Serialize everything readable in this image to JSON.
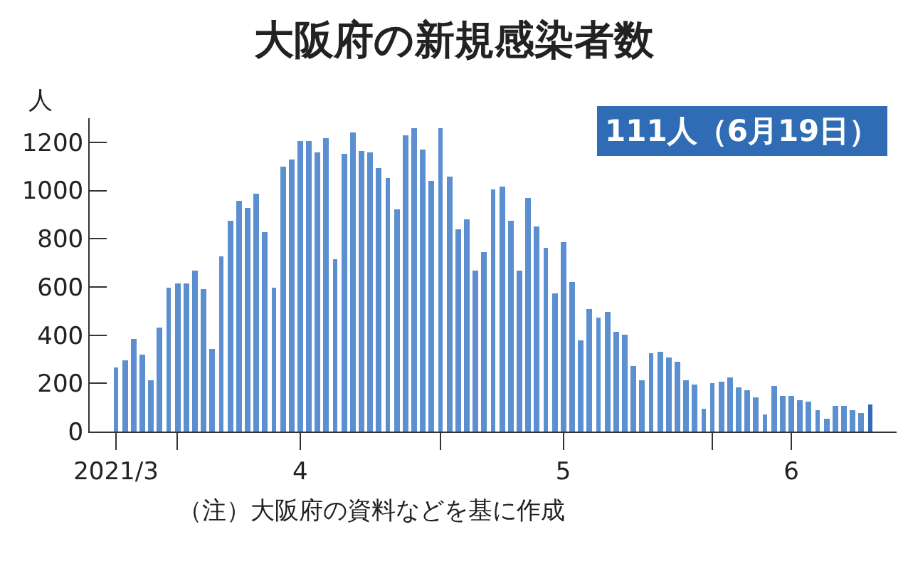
{
  "chart_data": {
    "type": "bar",
    "title": "大阪府の新規感染者数",
    "ylabel": "人",
    "annotations": [
      "111人（6月19日）",
      "（注）大阪府の資料などを基に作成"
    ],
    "x": [
      "2021-03-25",
      "2021-03-26",
      "2021-03-27",
      "2021-03-28",
      "2021-03-29",
      "2021-03-30",
      "2021-03-31",
      "2021-04-01",
      "2021-04-02",
      "2021-04-03",
      "2021-04-04",
      "2021-04-05",
      "2021-04-06",
      "2021-04-07",
      "2021-04-08",
      "2021-04-09",
      "2021-04-10",
      "2021-04-11",
      "2021-04-12",
      "2021-04-13",
      "2021-04-14",
      "2021-04-15",
      "2021-04-16",
      "2021-04-17",
      "2021-04-18",
      "2021-04-19",
      "2021-04-20",
      "2021-04-21",
      "2021-04-22",
      "2021-04-23",
      "2021-04-24",
      "2021-04-25",
      "2021-04-26",
      "2021-04-27",
      "2021-04-28",
      "2021-04-29",
      "2021-04-30",
      "2021-05-01",
      "2021-05-02",
      "2021-05-03",
      "2021-05-04",
      "2021-05-05",
      "2021-05-06",
      "2021-05-07",
      "2021-05-08",
      "2021-05-09",
      "2021-05-10",
      "2021-05-11",
      "2021-05-12",
      "2021-05-13",
      "2021-05-14",
      "2021-05-15",
      "2021-05-16",
      "2021-05-17",
      "2021-05-18",
      "2021-05-19",
      "2021-05-20",
      "2021-05-21",
      "2021-05-22",
      "2021-05-23",
      "2021-05-24",
      "2021-05-25",
      "2021-05-26",
      "2021-05-27",
      "2021-05-28",
      "2021-05-29",
      "2021-05-30",
      "2021-05-31",
      "2021-06-01",
      "2021-06-02",
      "2021-06-03",
      "2021-06-04",
      "2021-06-05",
      "2021-06-06",
      "2021-06-07",
      "2021-06-08",
      "2021-06-09",
      "2021-06-10",
      "2021-06-11",
      "2021-06-12",
      "2021-06-13",
      "2021-06-14",
      "2021-06-15",
      "2021-06-16",
      "2021-06-17",
      "2021-06-18",
      "2021-06-19"
    ],
    "values": [
      264,
      296,
      385,
      322,
      211,
      429,
      596,
      614,
      614,
      666,
      592,
      340,
      729,
      876,
      956,
      926,
      989,
      826,
      598,
      1097,
      1131,
      1206,
      1206,
      1160,
      1220,
      717,
      1150,
      1240,
      1164,
      1160,
      1095,
      1049,
      922,
      1228,
      1258,
      1170,
      1041,
      1258,
      1057,
      842,
      882,
      668,
      745,
      1005,
      1019,
      872,
      668,
      972,
      848,
      761,
      574,
      783,
      618,
      378,
      509,
      475,
      499,
      411,
      403,
      272,
      215,
      324,
      328,
      306,
      288,
      215,
      195,
      95,
      199,
      209,
      225,
      185,
      171,
      141,
      68,
      187,
      149,
      145,
      129,
      123,
      91,
      52,
      107,
      107,
      91,
      77,
      111
    ],
    "colors": [
      "#5b8fd0",
      "#5b8fd0",
      "#5b8fd0",
      "#5b8fd0",
      "#5b8fd0",
      "#5b8fd0",
      "#5b8fd0",
      "#5b8fd0",
      "#5b8fd0",
      "#5b8fd0",
      "#5b8fd0",
      "#5b8fd0",
      "#5b8fd0",
      "#5b8fd0",
      "#5b8fd0",
      "#5b8fd0",
      "#5b8fd0",
      "#5b8fd0",
      "#5b8fd0",
      "#5b8fd0",
      "#5b8fd0",
      "#5b8fd0",
      "#5b8fd0",
      "#5b8fd0",
      "#5b8fd0",
      "#5b8fd0",
      "#5b8fd0",
      "#5b8fd0",
      "#5b8fd0",
      "#5b8fd0",
      "#5b8fd0",
      "#5b8fd0",
      "#5b8fd0",
      "#5b8fd0",
      "#5b8fd0",
      "#5b8fd0",
      "#5b8fd0",
      "#5b8fd0",
      "#5b8fd0",
      "#5b8fd0",
      "#5b8fd0",
      "#5b8fd0",
      "#5b8fd0",
      "#5b8fd0",
      "#5b8fd0",
      "#5b8fd0",
      "#5b8fd0",
      "#5b8fd0",
      "#5b8fd0",
      "#5b8fd0",
      "#5b8fd0",
      "#5b8fd0",
      "#5b8fd0",
      "#5b8fd0",
      "#5b8fd0",
      "#5b8fd0",
      "#5b8fd0",
      "#5b8fd0",
      "#5b8fd0",
      "#5b8fd0",
      "#5b8fd0",
      "#5b8fd0",
      "#5b8fd0",
      "#5b8fd0",
      "#5b8fd0",
      "#5b8fd0",
      "#5b8fd0",
      "#5b8fd0",
      "#5b8fd0",
      "#5b8fd0",
      "#5b8fd0",
      "#5b8fd0",
      "#5b8fd0",
      "#5b8fd0",
      "#5b8fd0",
      "#5b8fd0",
      "#5b8fd0",
      "#5b8fd0",
      "#5b8fd0",
      "#5b8fd0",
      "#5b8fd0",
      "#5b8fd0",
      "#5b8fd0",
      "#5b8fd0",
      "#5b8fd0",
      "#5b8fd0",
      "#2f6cb5"
    ],
    "xlim": [
      "2021-03-22",
      "2021-06-22"
    ],
    "xticks": [
      {
        "value": "2021-03-25",
        "label": "2021/3"
      },
      {
        "value": "2021-04-01",
        "label": null
      },
      {
        "value": "2021-04-15",
        "label": "4"
      },
      {
        "value": "2021-05-01",
        "label": null
      },
      {
        "value": "2021-05-15",
        "label": "5"
      },
      {
        "value": "2021-06-01",
        "label": null
      },
      {
        "value": "2021-06-10",
        "label": "6"
      }
    ],
    "ylim": [
      0,
      1300
    ],
    "yticks": [
      0,
      200,
      400,
      600,
      800,
      1000,
      1200
    ]
  }
}
